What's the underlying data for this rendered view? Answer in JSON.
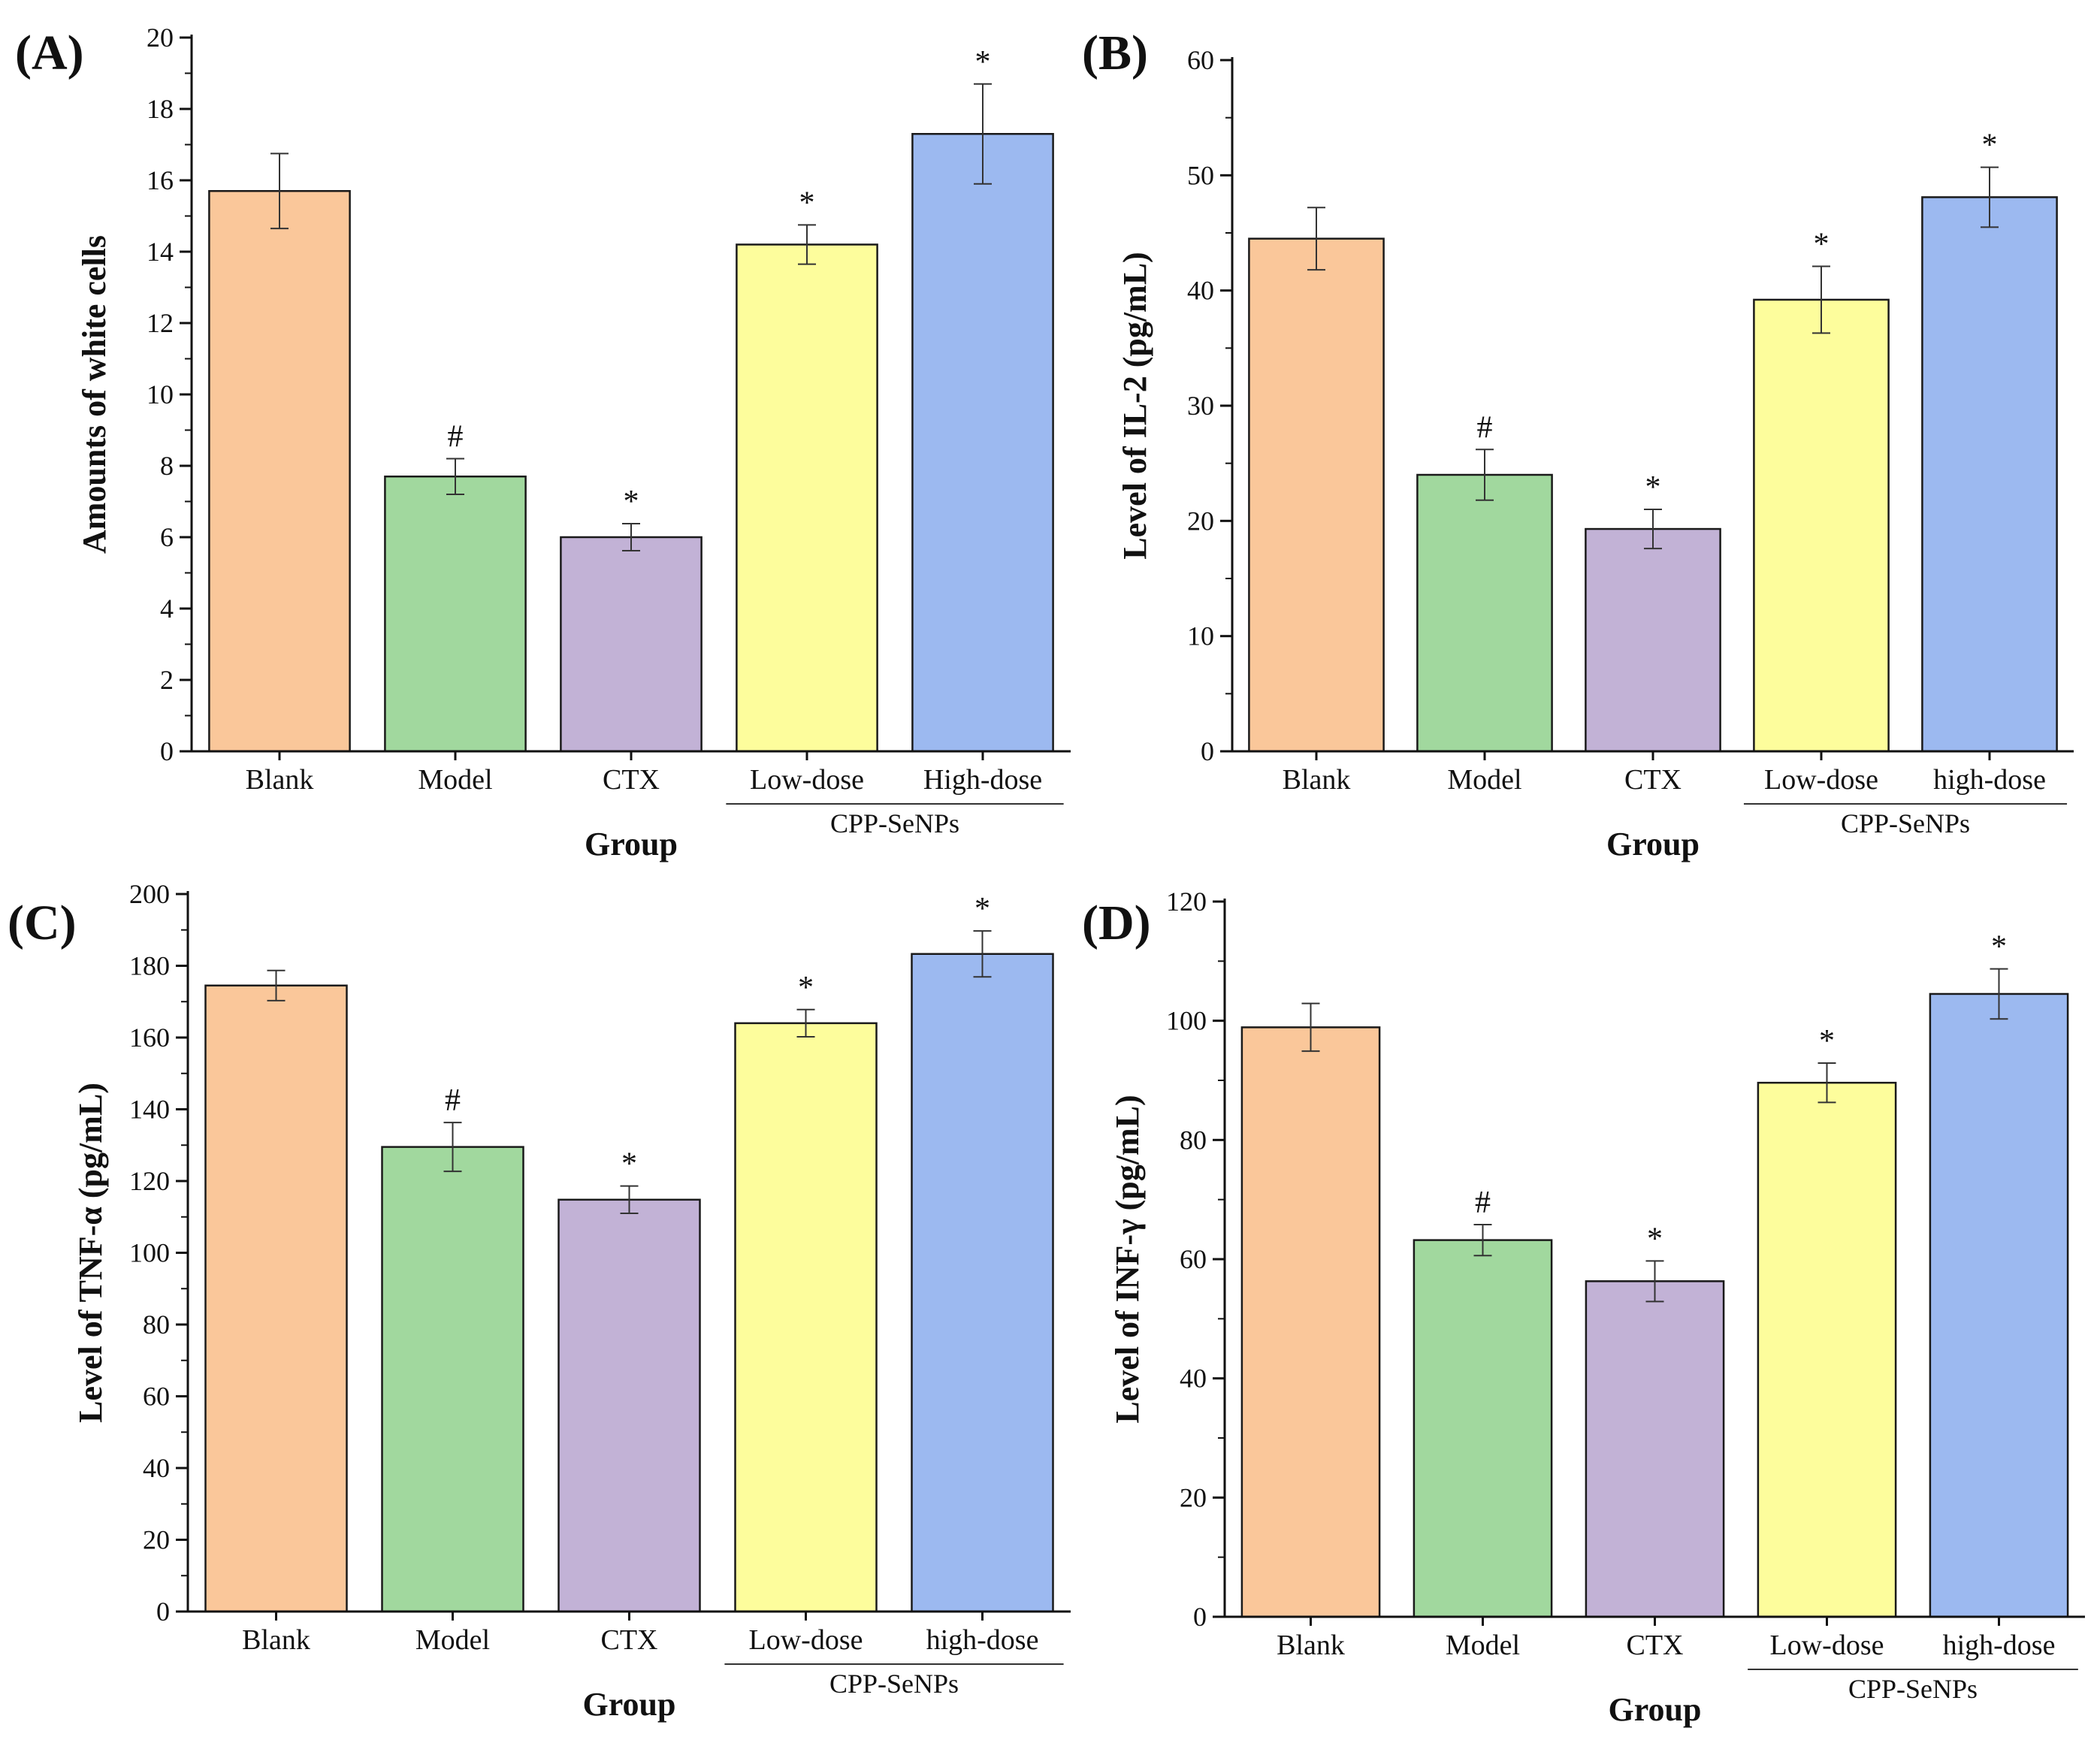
{
  "chart_data": [
    {
      "panel": "(A)",
      "type": "bar",
      "categories": [
        "Blank",
        "Model",
        "CTX",
        "Low-dose",
        "High-dose"
      ],
      "group_bracket": {
        "label": "CPP-SeNPs",
        "from_index": 3,
        "to_index": 4
      },
      "values": [
        15.7,
        7.7,
        6.0,
        14.2,
        17.3
      ],
      "errors": [
        1.05,
        0.5,
        0.38,
        0.55,
        1.4
      ],
      "annotations": [
        "",
        "#",
        "*",
        "*",
        "*"
      ],
      "colors": [
        "#fac79a",
        "#a1d89e",
        "#c2b2d6",
        "#fdfd9c",
        "#9cb9f0"
      ],
      "xlabel": "Group",
      "ylabel": "Amounts of white cells",
      "ylim": [
        0,
        20
      ],
      "yticks": [
        0,
        2,
        4,
        6,
        8,
        10,
        12,
        14,
        16,
        18,
        20
      ],
      "grid": false
    },
    {
      "panel": "(B)",
      "type": "bar",
      "categories": [
        "Blank",
        "Model",
        "CTX",
        "Low-dose",
        "high-dose"
      ],
      "group_bracket": {
        "label": "CPP-SeNPs",
        "from_index": 3,
        "to_index": 4
      },
      "values": [
        44.5,
        24.0,
        19.3,
        39.2,
        48.1
      ],
      "errors": [
        2.7,
        2.2,
        1.7,
        2.9,
        2.6
      ],
      "annotations": [
        "",
        "#",
        "*",
        "*",
        "*"
      ],
      "colors": [
        "#fac79a",
        "#a1d89e",
        "#c2b2d6",
        "#fdfd9c",
        "#9cb9f0"
      ],
      "xlabel": "Group",
      "ylabel": "Level of IL-2 (pg/mL)",
      "ylim": [
        0,
        60
      ],
      "yticks": [
        0,
        10,
        20,
        30,
        40,
        50,
        60
      ],
      "grid": false
    },
    {
      "panel": "(C)",
      "type": "bar",
      "categories": [
        "Blank",
        "Model",
        "CTX",
        "Low-dose",
        "high-dose"
      ],
      "group_bracket": {
        "label": "CPP-SeNPs",
        "from_index": 3,
        "to_index": 4
      },
      "values": [
        174.5,
        129.5,
        114.8,
        164.0,
        183.3
      ],
      "errors": [
        4.2,
        6.8,
        3.8,
        3.8,
        6.4
      ],
      "annotations": [
        "",
        "#",
        "*",
        "*",
        "*"
      ],
      "colors": [
        "#fac79a",
        "#a1d89e",
        "#c2b2d6",
        "#fdfd9c",
        "#9cb9f0"
      ],
      "xlabel": "Group",
      "ylabel": "Level of TNF-α (pg/mL)",
      "ylim": [
        0,
        200
      ],
      "yticks": [
        0,
        20,
        40,
        60,
        80,
        100,
        120,
        140,
        160,
        180,
        200
      ],
      "grid": false
    },
    {
      "panel": "(D)",
      "type": "bar",
      "categories": [
        "Blank",
        "Model",
        "CTX",
        "Low-dose",
        "high-dose"
      ],
      "group_bracket": {
        "label": "CPP-SeNPs",
        "from_index": 3,
        "to_index": 4
      },
      "values": [
        98.9,
        63.2,
        56.3,
        89.6,
        104.5
      ],
      "errors": [
        4.0,
        2.6,
        3.4,
        3.3,
        4.2
      ],
      "annotations": [
        "",
        "#",
        "*",
        "*",
        "*"
      ],
      "colors": [
        "#fac79a",
        "#a1d89e",
        "#c2b2d6",
        "#fdfd9c",
        "#9cb9f0"
      ],
      "xlabel": "Group",
      "ylabel": "Level of INF-γ (pg/mL)",
      "ylim": [
        0,
        120
      ],
      "yticks": [
        0,
        20,
        40,
        60,
        80,
        100,
        120
      ],
      "grid": false
    }
  ]
}
